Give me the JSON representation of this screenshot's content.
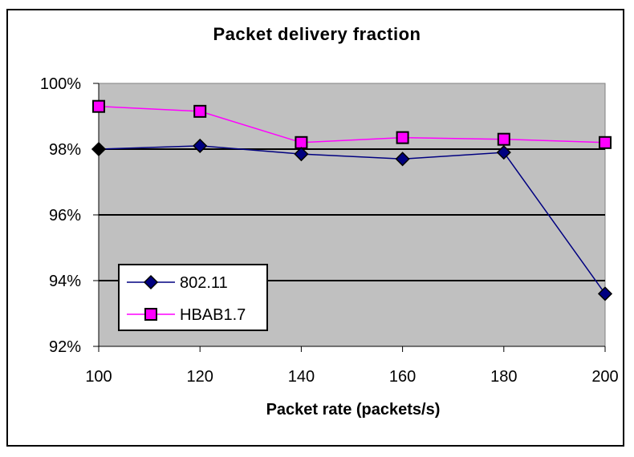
{
  "chart_data": {
    "type": "line",
    "title": "Packet delivery fraction",
    "xlabel": "Packet rate (packets/s)",
    "ylabel": "",
    "x": [
      100,
      120,
      140,
      160,
      180,
      200
    ],
    "xticks": [
      "100",
      "120",
      "140",
      "160",
      "180",
      "200"
    ],
    "yticks": [
      "92%",
      "94%",
      "96%",
      "98%",
      "100%"
    ],
    "ylim": [
      92,
      100
    ],
    "xlim": [
      100,
      200
    ],
    "grid": {
      "horizontal": true,
      "vertical": false
    },
    "legend_position": "lower-left inside plot",
    "plot_background": "#c0c0c0",
    "series": [
      {
        "name": "802.11",
        "marker": "diamond",
        "line_color": "#000080",
        "marker_color": "#000080",
        "values": [
          98.0,
          98.1,
          97.85,
          97.7,
          97.9,
          93.6
        ]
      },
      {
        "name": "HBAB1.7",
        "marker": "square",
        "line_color": "#ff00ff",
        "marker_color": "#ff00ff",
        "values": [
          99.3,
          99.15,
          98.2,
          98.35,
          98.3,
          98.2
        ]
      }
    ]
  }
}
